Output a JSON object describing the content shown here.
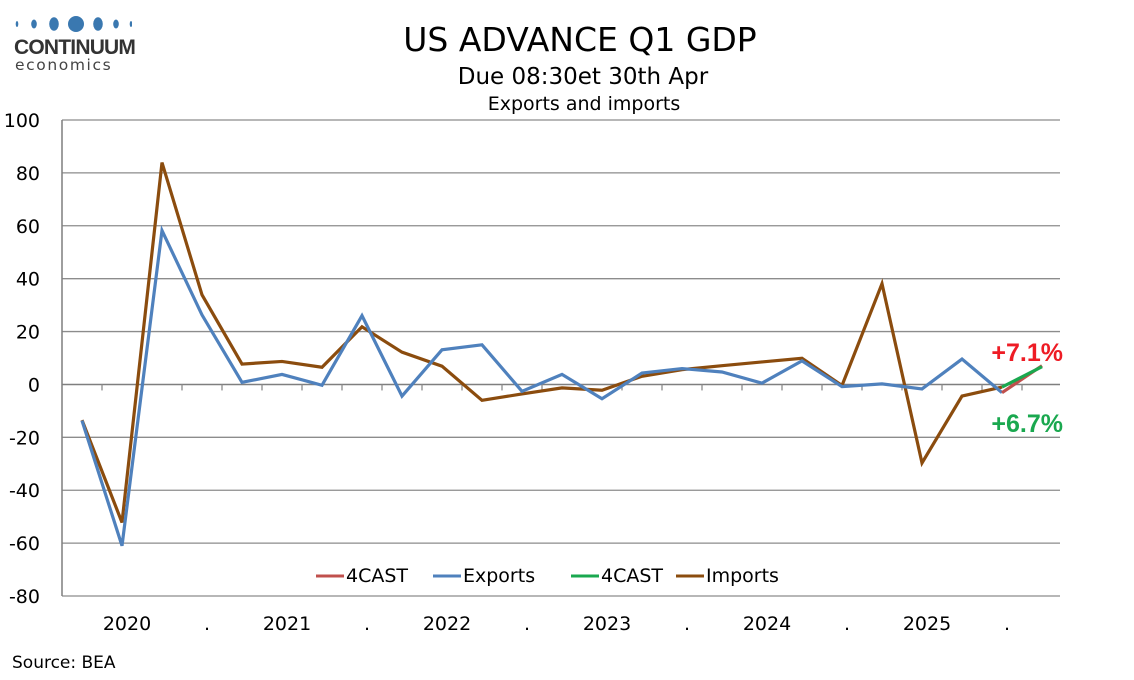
{
  "logo": {
    "name": "CONTINUUM",
    "sub": "economics",
    "dot_color": "#3a78b0"
  },
  "header": {
    "title": "US ADVANCE Q1 GDP",
    "subtitle": "Due 08:30et 30th Apr",
    "subtitle2": "Exports and imports"
  },
  "source": "Source: BEA",
  "chart_data": {
    "type": "line",
    "title": "US ADVANCE Q1 GDP",
    "subtitle": "Exports and imports",
    "xlabel": "",
    "ylabel": "",
    "ylim": [
      -80,
      100
    ],
    "yticks": [
      100,
      80,
      60,
      40,
      20,
      0,
      -20,
      -40,
      -60,
      -80
    ],
    "grid": true,
    "legend_position": "bottom-center",
    "x": [
      "2020Q1",
      "2020Q2",
      "2020Q3",
      "2020Q4",
      "2021Q1",
      "2021Q2",
      "2021Q3",
      "2021Q4",
      "2022Q1",
      "2022Q2",
      "2022Q3",
      "2022Q4",
      "2023Q1",
      "2023Q2",
      "2023Q3",
      "2023Q4",
      "2024Q1",
      "2024Q2",
      "2024Q3",
      "2024Q4",
      "2025Q1",
      "2025Q2",
      "2025Q3",
      "2025Q4",
      "2026Q1"
    ],
    "x_tick_labels": [
      "2020",
      ".",
      "2021",
      ".",
      "2022",
      ".",
      "2023",
      ".",
      "2024",
      ".",
      "2025",
      "."
    ],
    "series": [
      {
        "name": "4CAST",
        "color": "#c0504d",
        "values": [
          null,
          null,
          null,
          null,
          null,
          null,
          null,
          null,
          null,
          null,
          null,
          null,
          null,
          null,
          null,
          null,
          null,
          null,
          null,
          null,
          null,
          null,
          null,
          -3.1,
          7.1
        ]
      },
      {
        "name": "Exports",
        "color": "#4f81bd",
        "values": [
          -13.7,
          -61.0,
          58.2,
          26.3,
          0.8,
          3.8,
          -0.3,
          26.0,
          -4.4,
          13.1,
          15.0,
          -2.6,
          3.8,
          -5.4,
          4.3,
          6.0,
          4.7,
          0.5,
          8.9,
          -0.8,
          0.2,
          -1.7,
          9.6,
          -3.1,
          null
        ]
      },
      {
        "name": "4CAST",
        "color": "#1aa84f",
        "values": [
          null,
          null,
          null,
          null,
          null,
          null,
          null,
          null,
          null,
          null,
          null,
          null,
          null,
          null,
          null,
          null,
          null,
          null,
          null,
          null,
          null,
          null,
          null,
          -1.0,
          6.7
        ]
      },
      {
        "name": "Imports",
        "color": "#8b4c0e",
        "values": [
          -13.5,
          -52.2,
          83.9,
          33.9,
          7.7,
          8.7,
          6.5,
          21.8,
          12.2,
          6.9,
          -6.0,
          -3.6,
          -1.3,
          -2.2,
          3.1,
          5.6,
          7.1,
          8.5,
          9.9,
          -0.4,
          38.1,
          -29.7,
          -4.4,
          -1.0,
          null
        ]
      }
    ],
    "annotations": [
      {
        "text": "+7.1%",
        "color": "#ee1c25",
        "refers_to": "Exports 4CAST"
      },
      {
        "text": "+6.7%",
        "color": "#1aa84f",
        "refers_to": "Imports 4CAST"
      }
    ]
  }
}
